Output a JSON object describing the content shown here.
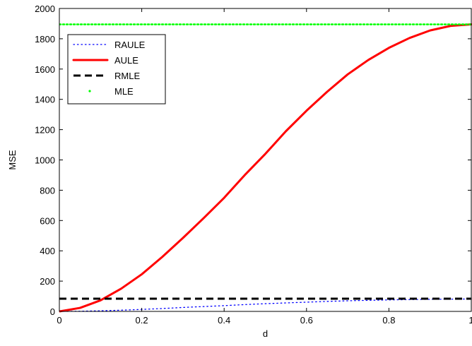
{
  "chart_data": {
    "type": "line",
    "title": "",
    "xlabel": "d",
    "ylabel": "MSE",
    "xlim": [
      0,
      1
    ],
    "ylim": [
      0,
      2000
    ],
    "xticks": [
      0,
      0.2,
      0.4,
      0.6,
      0.8,
      1
    ],
    "xtick_labels": [
      "0",
      "0.2",
      "0.4",
      "0.6",
      "0.8",
      "1"
    ],
    "yticks": [
      0,
      200,
      400,
      600,
      800,
      1000,
      1200,
      1400,
      1600,
      1800,
      2000
    ],
    "ytick_labels": [
      "0",
      "200",
      "400",
      "600",
      "800",
      "1000",
      "1200",
      "1400",
      "1600",
      "1800",
      "2000"
    ],
    "grid": false,
    "legend_position": "top-left",
    "series": [
      {
        "name": "RAULE",
        "color": "#0000ff",
        "style": "dotted",
        "x": [
          0,
          0.05,
          0.1,
          0.15,
          0.2,
          0.25,
          0.3,
          0.35,
          0.4,
          0.45,
          0.5,
          0.55,
          0.6,
          0.65,
          0.7,
          0.75,
          0.8,
          0.85,
          0.9,
          0.95,
          1.0
        ],
        "y": [
          0,
          1,
          4,
          8,
          13,
          19,
          26,
          32,
          38,
          45,
          51,
          56,
          61,
          66,
          70,
          73,
          76,
          78,
          80,
          81,
          82
        ]
      },
      {
        "name": "AULE",
        "color": "#ff0000",
        "style": "solid",
        "x": [
          0,
          0.05,
          0.1,
          0.15,
          0.2,
          0.25,
          0.3,
          0.35,
          0.4,
          0.45,
          0.5,
          0.55,
          0.6,
          0.65,
          0.7,
          0.75,
          0.8,
          0.85,
          0.9,
          0.95,
          1.0
        ],
        "y": [
          0,
          23,
          73,
          150,
          245,
          360,
          485,
          615,
          750,
          900,
          1040,
          1190,
          1325,
          1450,
          1565,
          1660,
          1740,
          1805,
          1855,
          1885,
          1895
        ]
      },
      {
        "name": "RMLE",
        "color": "#000000",
        "style": "dashed",
        "x": [
          0,
          1
        ],
        "y": [
          84,
          84
        ]
      },
      {
        "name": "MLE",
        "color": "#00ff00",
        "style": "dotted",
        "x": [
          0,
          1
        ],
        "y": [
          1895,
          1895
        ]
      }
    ]
  }
}
